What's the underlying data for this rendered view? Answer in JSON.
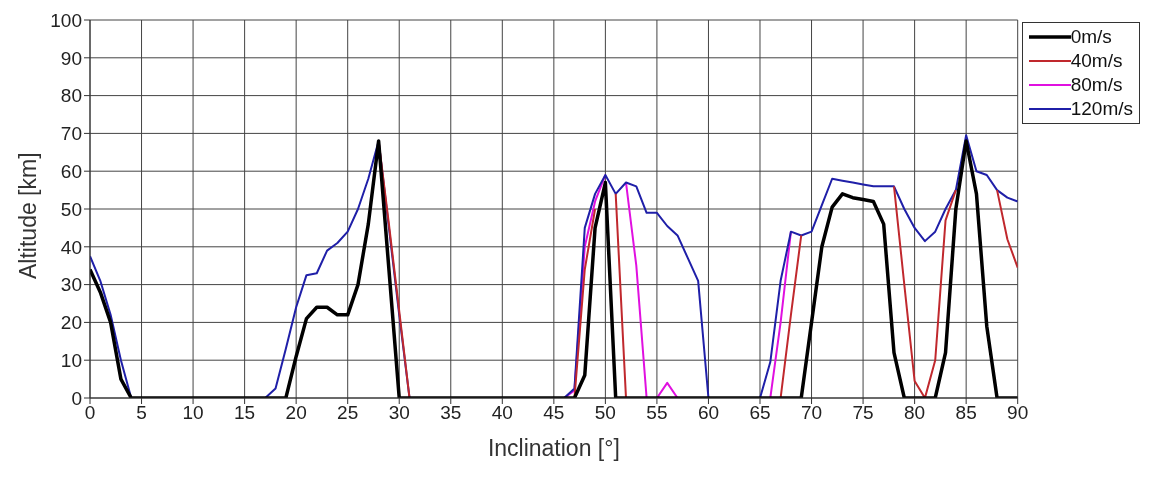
{
  "chart_data": {
    "type": "line",
    "xlabel": "Inclination [°]",
    "ylabel": "Altitude [km]",
    "xlim": [
      0,
      90
    ],
    "xticks": [
      0,
      5,
      10,
      15,
      20,
      25,
      30,
      35,
      40,
      45,
      50,
      55,
      60,
      65,
      70,
      75,
      80,
      85,
      90
    ],
    "ylim": [
      0,
      100
    ],
    "yticks": [
      0,
      10,
      20,
      30,
      40,
      50,
      60,
      70,
      80,
      90,
      100
    ],
    "grid": true,
    "legend": "top right",
    "line_style": "solid",
    "marker": "none",
    "series": [
      {
        "name": "0m/s",
        "color": "#000000",
        "x": [
          0,
          1,
          2,
          3,
          4,
          19,
          20,
          21,
          22,
          23,
          24,
          25,
          26,
          27,
          28,
          30,
          47,
          48,
          49,
          50,
          51,
          69,
          70,
          71,
          72,
          73,
          74,
          75,
          76,
          77,
          78,
          79,
          82,
          83,
          84,
          85,
          86,
          87,
          88,
          90
        ],
        "values": [
          34,
          28,
          20,
          5,
          0,
          0,
          11,
          21,
          24,
          24,
          22,
          22,
          30,
          46,
          68,
          0,
          0,
          6,
          45,
          57,
          0,
          0,
          20,
          40,
          50.5,
          54,
          53,
          52.5,
          52,
          46,
          12,
          0,
          0,
          12,
          50,
          68,
          54,
          19,
          0,
          0
        ]
      },
      {
        "name": "40m/s",
        "color": "#c0282d",
        "x": [
          28,
          29,
          30,
          31,
          32,
          47,
          48,
          49,
          50,
          51,
          52,
          53,
          67,
          68,
          69,
          70,
          78,
          79,
          80,
          81,
          82,
          83,
          84,
          85,
          88,
          89,
          90
        ],
        "values": [
          68,
          46,
          23,
          0,
          null,
          0,
          34,
          50,
          null,
          54,
          0,
          null,
          0,
          22,
          43,
          null,
          56,
          30,
          4.5,
          0,
          10,
          47,
          55,
          null,
          55,
          42,
          34.5
        ]
      },
      {
        "name": "80m/s",
        "color": "#e010e0",
        "x": [
          46,
          47,
          48,
          49,
          50,
          51,
          52,
          53,
          54,
          55,
          56,
          57,
          58,
          66,
          67,
          68
        ],
        "values": [
          0,
          2,
          40,
          52,
          59,
          null,
          57,
          35,
          0,
          0,
          4,
          0,
          null,
          0,
          20,
          44
        ]
      },
      {
        "name": "120m/s",
        "color": "#1f1fa8",
        "x": [
          0,
          1,
          2,
          3,
          4,
          17,
          18,
          19,
          20,
          21,
          22,
          23,
          24,
          25,
          26,
          27,
          28,
          29,
          30,
          31,
          46,
          47,
          48,
          49,
          50,
          51,
          52,
          53,
          54,
          55,
          56,
          57,
          58,
          59,
          60,
          65,
          66,
          67,
          68,
          69,
          70,
          71,
          72,
          73,
          74,
          75,
          76,
          77,
          78,
          79,
          80,
          81,
          82,
          83,
          84,
          85,
          86,
          87,
          88,
          89,
          90
        ],
        "values": [
          37.5,
          31,
          22,
          10,
          0,
          0,
          2.5,
          13,
          24,
          32.5,
          33,
          39,
          41,
          44,
          50,
          58,
          68,
          45,
          22,
          0,
          0,
          2.5,
          45,
          54,
          59,
          54,
          57,
          56,
          49,
          49,
          45.5,
          43,
          37,
          31,
          0,
          0,
          9.5,
          31,
          44,
          43,
          44,
          51,
          58,
          57.5,
          57,
          56.5,
          56,
          56,
          56,
          50,
          45,
          41.5,
          44,
          50,
          55,
          69.5,
          60,
          59,
          55,
          53,
          52
        ]
      }
    ]
  }
}
